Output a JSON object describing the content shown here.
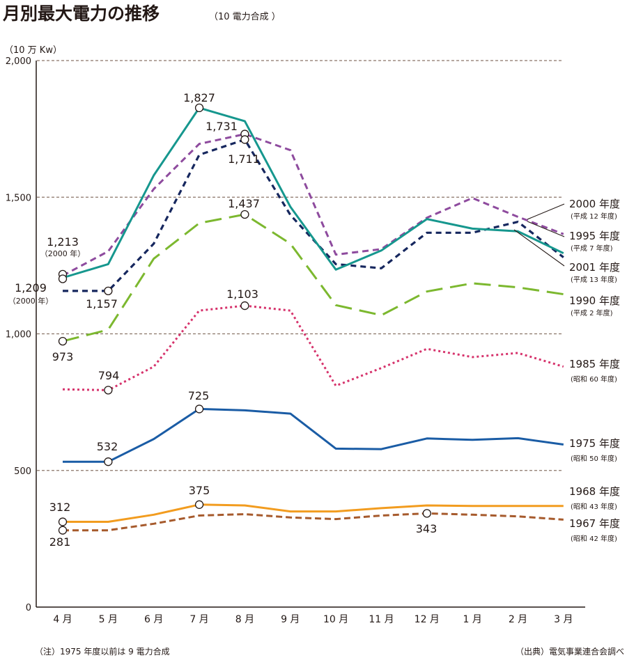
{
  "chart_data": {
    "type": "line",
    "title": "月別最大電力の推移",
    "subtitle": "（10 電力合成 ）",
    "ylabel": "（10 万 Kw）",
    "ylim": [
      0,
      2000
    ],
    "yticks": [
      {
        "value": 0,
        "label": "0"
      },
      {
        "value": 500,
        "label": "500"
      },
      {
        "value": 1000,
        "label": "1,000"
      },
      {
        "value": 1500,
        "label": "1,500"
      },
      {
        "value": 2000,
        "label": "2,000"
      }
    ],
    "categories": [
      "4 月",
      "5 月",
      "6 月",
      "7 月",
      "8 月",
      "9 月",
      "10 月",
      "11 月",
      "12 月",
      "1 月",
      "2 月",
      "3 月"
    ],
    "series": [
      {
        "name": "2000 年度",
        "sub": "(平成 12 年度)",
        "color": "#8e4b9e",
        "dash": "9 6",
        "width": 3,
        "values": [
          1213,
          1302,
          1530,
          1695,
          1731,
          1672,
          1290,
          1310,
          1425,
          1497,
          1428,
          1365
        ]
      },
      {
        "name": "1995 年度",
        "sub": "(平成 7 年度)",
        "color": "#16978e",
        "dash": "",
        "width": 3,
        "values": [
          1205,
          1255,
          1580,
          1827,
          1778,
          1465,
          1235,
          1305,
          1420,
          1385,
          1375,
          1295
        ]
      },
      {
        "name": "2001 年度",
        "sub": "(平成 13 年度)",
        "color": "#16275e",
        "dash": "8 6",
        "width": 3.2,
        "values": [
          1157,
          1157,
          1330,
          1655,
          1711,
          1435,
          1255,
          1240,
          1370,
          1370,
          1410,
          1280
        ]
      },
      {
        "name": "1990 年度",
        "sub": "(平成 2 年度)",
        "color": "#7cb82f",
        "dash": "24 11",
        "width": 3,
        "values": [
          973,
          1015,
          1275,
          1405,
          1437,
          1330,
          1105,
          1068,
          1155,
          1185,
          1170,
          1145
        ]
      },
      {
        "name": "1985 年度",
        "sub": "(昭和 60 年度)",
        "color": "#d6336c",
        "dash": "3 4",
        "width": 3,
        "values": [
          797,
          794,
          880,
          1085,
          1103,
          1085,
          810,
          875,
          945,
          915,
          930,
          880
        ]
      },
      {
        "name": "1975 年度",
        "sub": "(昭和 50 年度)",
        "color": "#1a5ca5",
        "dash": "",
        "width": 3,
        "values": [
          532,
          532,
          615,
          725,
          720,
          708,
          580,
          578,
          617,
          612,
          618,
          595
        ]
      },
      {
        "name": "1968 年度",
        "sub": "(昭和 43 年度)",
        "color": "#f29c1f",
        "dash": "",
        "width": 3,
        "values": [
          312,
          312,
          338,
          375,
          372,
          350,
          350,
          362,
          372,
          370,
          370,
          370
        ]
      },
      {
        "name": "1967 年度",
        "sub": "(昭和 42 年度)",
        "color": "#a65a2c",
        "dash": "9 5",
        "width": 3,
        "values": [
          281,
          281,
          305,
          335,
          340,
          328,
          322,
          335,
          343,
          338,
          332,
          320
        ]
      }
    ],
    "annotations": [
      {
        "label": "1,213",
        "sub": "（2000 年）",
        "value": 1213
      },
      {
        "label": "1,209",
        "sub": "（2000 年）",
        "value": 1209
      },
      {
        "label": "1,157",
        "value": 1157
      },
      {
        "label": "973",
        "value": 973
      },
      {
        "label": "794",
        "value": 794
      },
      {
        "label": "532",
        "value": 532
      },
      {
        "label": "1,827",
        "value": 1827
      },
      {
        "label": "1,731",
        "value": 1731
      },
      {
        "label": "1,711",
        "value": 1711
      },
      {
        "label": "1,437",
        "value": 1437
      },
      {
        "label": "1,103",
        "value": 1103
      },
      {
        "label": "725",
        "value": 725
      },
      {
        "label": "375",
        "value": 375
      },
      {
        "label": "312",
        "value": 312
      },
      {
        "label": "281",
        "value": 281
      },
      {
        "label": "343",
        "value": 343
      }
    ],
    "note": "（注）1975 年度以前は 9 電力合成",
    "source": "（出典）電気事業連合会調べ"
  }
}
